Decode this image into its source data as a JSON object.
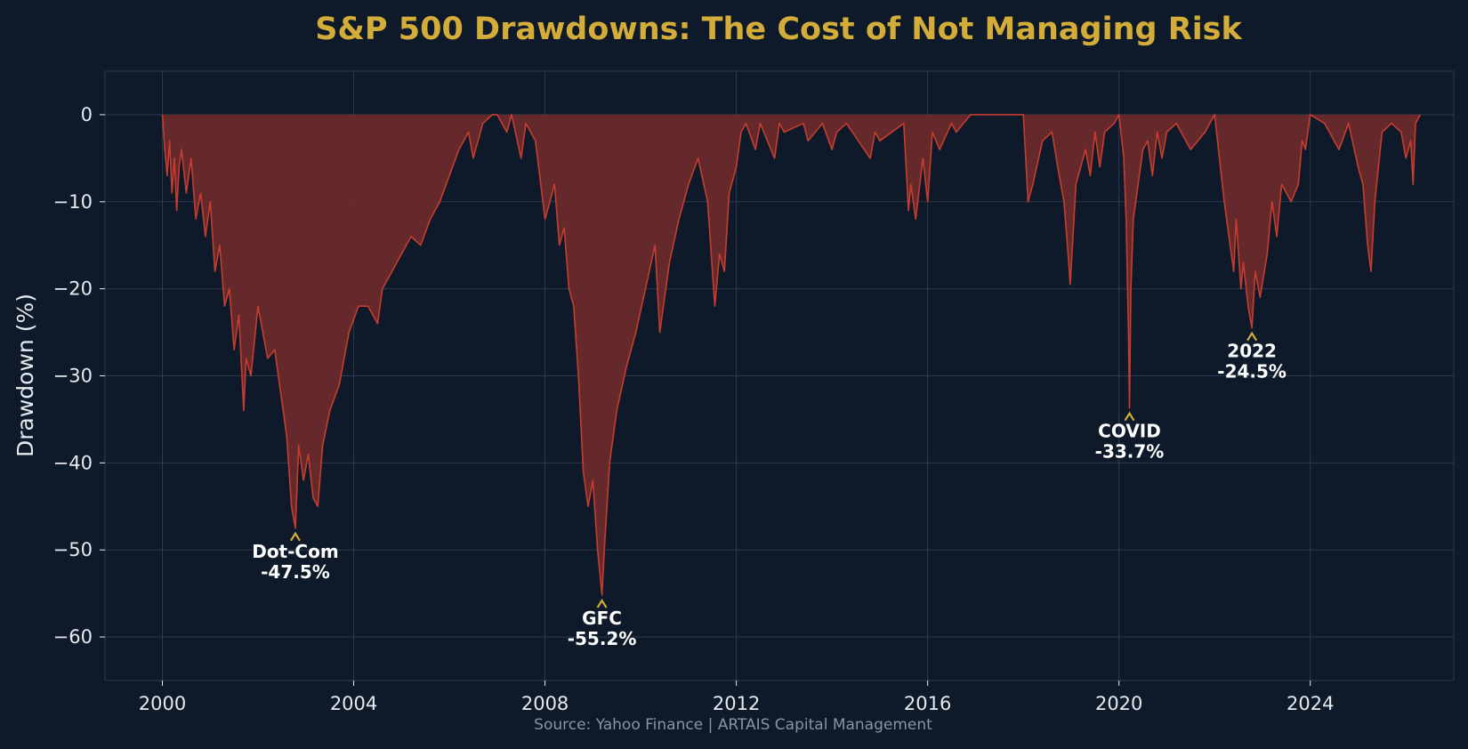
{
  "colors": {
    "background": "#0e1a29",
    "title": "#d4ac3a",
    "fill": "#6b2a2b",
    "line": "#c63d2f",
    "grid": "#2c3a4d",
    "axis_text": "#e6e9ee",
    "annotation_arrow": "#d4ac3a",
    "annotation_text": "#ffffff",
    "source_text": "#8b93a1"
  },
  "chart_data": {
    "type": "area",
    "title": "S&P 500 Drawdowns: The Cost of Not Managing Risk",
    "xlabel": "",
    "ylabel": "Drawdown (%)",
    "xlim": [
      1998.8,
      2027.0
    ],
    "ylim": [
      -65,
      5
    ],
    "xticks": [
      2000,
      2004,
      2008,
      2012,
      2016,
      2020,
      2024
    ],
    "yticks": [
      0,
      -10,
      -20,
      -30,
      -40,
      -50,
      -60
    ],
    "ytick_labels": [
      "0",
      "−10",
      "−20",
      "−30",
      "−40",
      "−50",
      "−60"
    ],
    "grid": true,
    "series": [
      {
        "name": "S&P 500 drawdown",
        "x": [
          2000.0,
          2000.05,
          2000.1,
          2000.15,
          2000.2,
          2000.25,
          2000.3,
          2000.35,
          2000.4,
          2000.5,
          2000.6,
          2000.7,
          2000.8,
          2000.9,
          2001.0,
          2001.1,
          2001.2,
          2001.3,
          2001.4,
          2001.5,
          2001.6,
          2001.7,
          2001.75,
          2001.85,
          2002.0,
          2002.2,
          2002.35,
          2002.5,
          2002.6,
          2002.7,
          2002.78,
          2002.85,
          2002.95,
          2003.05,
          2003.15,
          2003.25,
          2003.35,
          2003.5,
          2003.7,
          2003.9,
          2004.1,
          2004.3,
          2004.5,
          2004.6,
          2004.8,
          2005.0,
          2005.2,
          2005.4,
          2005.6,
          2005.8,
          2006.0,
          2006.2,
          2006.4,
          2006.5,
          2006.7,
          2006.9,
          2007.0,
          2007.2,
          2007.3,
          2007.5,
          2007.6,
          2007.8,
          2008.0,
          2008.1,
          2008.2,
          2008.3,
          2008.4,
          2008.5,
          2008.6,
          2008.7,
          2008.8,
          2008.9,
          2009.0,
          2009.1,
          2009.19,
          2009.25,
          2009.35,
          2009.5,
          2009.7,
          2009.9,
          2010.1,
          2010.3,
          2010.4,
          2010.5,
          2010.6,
          2010.8,
          2011.0,
          2011.2,
          2011.4,
          2011.55,
          2011.65,
          2011.75,
          2011.85,
          2012.0,
          2012.1,
          2012.2,
          2012.4,
          2012.5,
          2012.8,
          2012.9,
          2013.0,
          2013.4,
          2013.5,
          2013.8,
          2014.0,
          2014.1,
          2014.3,
          2014.8,
          2014.9,
          2015.0,
          2015.5,
          2015.6,
          2015.65,
          2015.75,
          2015.9,
          2016.0,
          2016.1,
          2016.25,
          2016.5,
          2016.6,
          2016.9,
          2017.5,
          2018.0,
          2018.05,
          2018.1,
          2018.2,
          2018.4,
          2018.6,
          2018.75,
          2018.85,
          2018.95,
          2018.98,
          2019.1,
          2019.3,
          2019.4,
          2019.5,
          2019.6,
          2019.7,
          2019.9,
          2020.0,
          2020.1,
          2020.15,
          2020.2,
          2020.22,
          2020.25,
          2020.3,
          2020.4,
          2020.5,
          2020.6,
          2020.7,
          2020.8,
          2020.9,
          2021.0,
          2021.2,
          2021.5,
          2021.8,
          2022.0,
          2022.1,
          2022.2,
          2022.3,
          2022.4,
          2022.45,
          2022.55,
          2022.6,
          2022.7,
          2022.78,
          2022.85,
          2022.95,
          2023.1,
          2023.2,
          2023.3,
          2023.4,
          2023.6,
          2023.75,
          2023.83,
          2023.9,
          2024.0,
          2024.3,
          2024.4,
          2024.6,
          2024.8,
          2025.0,
          2025.1,
          2025.2,
          2025.27,
          2025.35,
          2025.5,
          2025.7,
          2025.9,
          2026.0,
          2026.1,
          2026.15,
          2026.2,
          2026.3
        ],
        "y": [
          0,
          -4,
          -7,
          -3,
          -9,
          -5,
          -11,
          -6,
          -4,
          -9,
          -5,
          -12,
          -9,
          -14,
          -10,
          -18,
          -15,
          -22,
          -20,
          -27,
          -23,
          -34,
          -28,
          -30,
          -22,
          -28,
          -27,
          -33,
          -37,
          -45,
          -47.5,
          -38,
          -42,
          -39,
          -44,
          -45,
          -38,
          -34,
          -31,
          -25,
          -22,
          -22,
          -24,
          -20,
          -18,
          -16,
          -14,
          -15,
          -12,
          -10,
          -7,
          -4,
          -2,
          -5,
          -1,
          0,
          0,
          -2,
          0,
          -5,
          -1,
          -3,
          -12,
          -10,
          -8,
          -15,
          -13,
          -20,
          -22,
          -30,
          -41,
          -45,
          -42,
          -50,
          -55.2,
          -49,
          -40,
          -34,
          -29,
          -25,
          -20,
          -15,
          -25,
          -21,
          -17,
          -12,
          -8,
          -5,
          -10,
          -22,
          -16,
          -18,
          -9,
          -6,
          -2,
          -1,
          -4,
          -1,
          -5,
          -1,
          -2,
          -1,
          -3,
          -1,
          -4,
          -2,
          -1,
          -5,
          -2,
          -3,
          -1,
          -11,
          -8,
          -12,
          -5,
          -10,
          -2,
          -4,
          -1,
          -2,
          0,
          0,
          0,
          -5,
          -10,
          -8,
          -3,
          -2,
          -7,
          -10,
          -17,
          -19.5,
          -8,
          -4,
          -7,
          -2,
          -6,
          -2,
          -1,
          0,
          -5,
          -12,
          -25,
          -33.7,
          -20,
          -12,
          -8,
          -4,
          -3,
          -7,
          -2,
          -5,
          -2,
          -1,
          -4,
          -2,
          0,
          -5,
          -10,
          -14,
          -18,
          -12,
          -20,
          -17,
          -22,
          -24.5,
          -18,
          -21,
          -16,
          -10,
          -14,
          -8,
          -10,
          -8,
          -3,
          -4,
          0,
          -1,
          -2,
          -4,
          -1,
          -6,
          -8,
          -15,
          -18,
          -10,
          -2,
          -1,
          -2,
          -5,
          -3,
          -8,
          -1,
          0
        ]
      }
    ],
    "annotations": [
      {
        "x": 2002.78,
        "y": -47.5,
        "label_line1": "Dot-Com",
        "label_line2": "-47.5%"
      },
      {
        "x": 2009.19,
        "y": -55.2,
        "label_line1": "GFC",
        "label_line2": "-55.2%"
      },
      {
        "x": 2020.22,
        "y": -33.7,
        "label_line1": "COVID",
        "label_line2": "-33.7%"
      },
      {
        "x": 2022.78,
        "y": -24.5,
        "label_line1": "2022",
        "label_line2": "-24.5%"
      }
    ],
    "source": "Source: Yahoo Finance | ARTAIS Capital Management"
  }
}
